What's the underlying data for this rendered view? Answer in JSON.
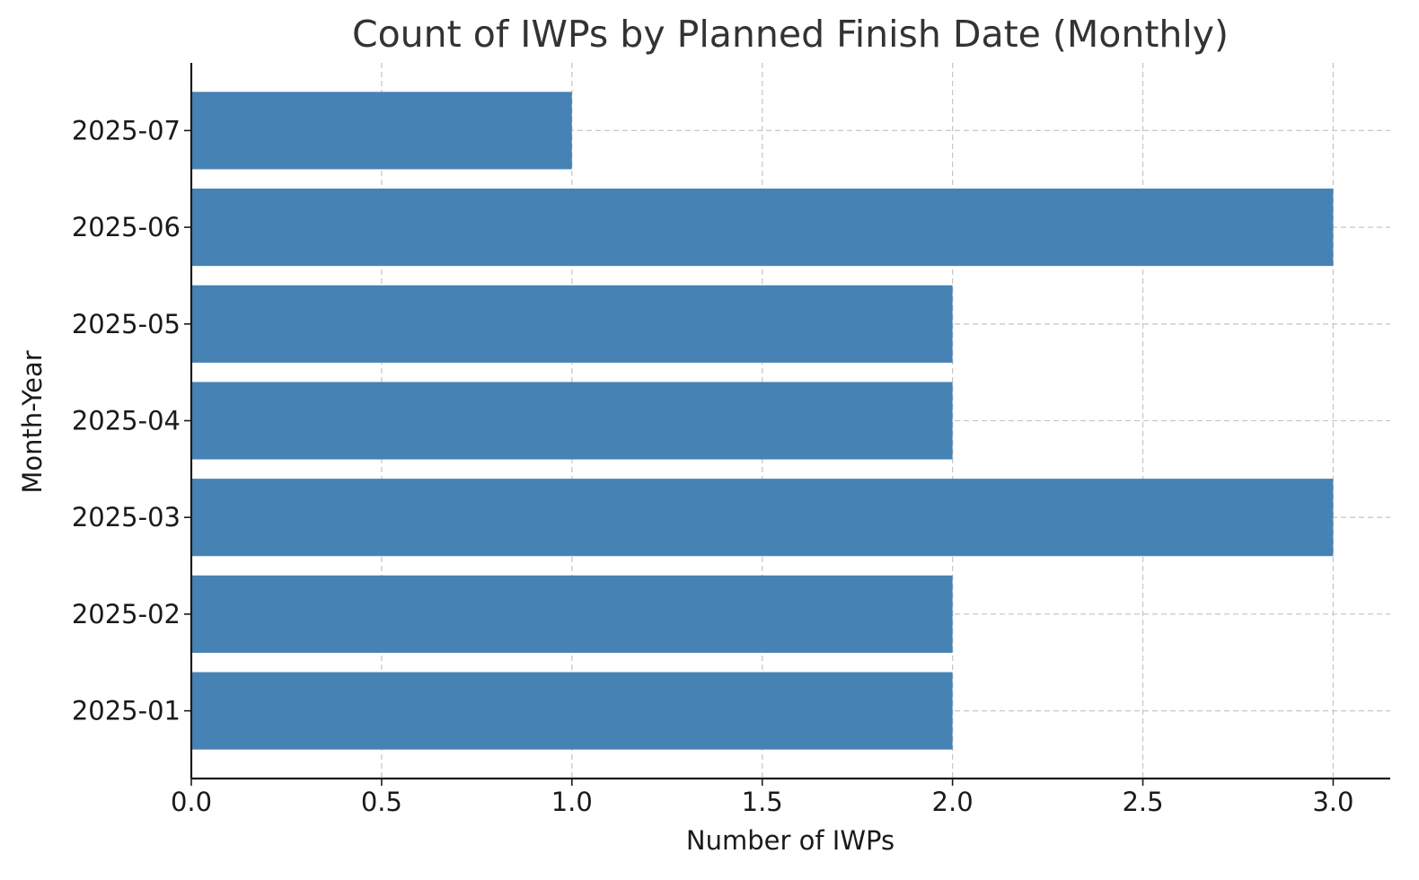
{
  "chart_data": {
    "type": "bar",
    "orientation": "horizontal",
    "title": "Count of IWPs by Planned Finish Date (Monthly)",
    "xlabel": "Number of IWPs",
    "ylabel": "Month-Year",
    "categories": [
      "2025-01",
      "2025-02",
      "2025-03",
      "2025-04",
      "2025-05",
      "2025-06",
      "2025-07"
    ],
    "values": [
      2,
      2,
      3,
      2,
      2,
      3,
      1
    ],
    "xlim": [
      0,
      3.15
    ],
    "xticks": [
      "0.0",
      "0.5",
      "1.0",
      "1.5",
      "2.0",
      "2.5",
      "3.0"
    ],
    "grid": true,
    "bar_color": "#4682b4",
    "legend": "none"
  }
}
